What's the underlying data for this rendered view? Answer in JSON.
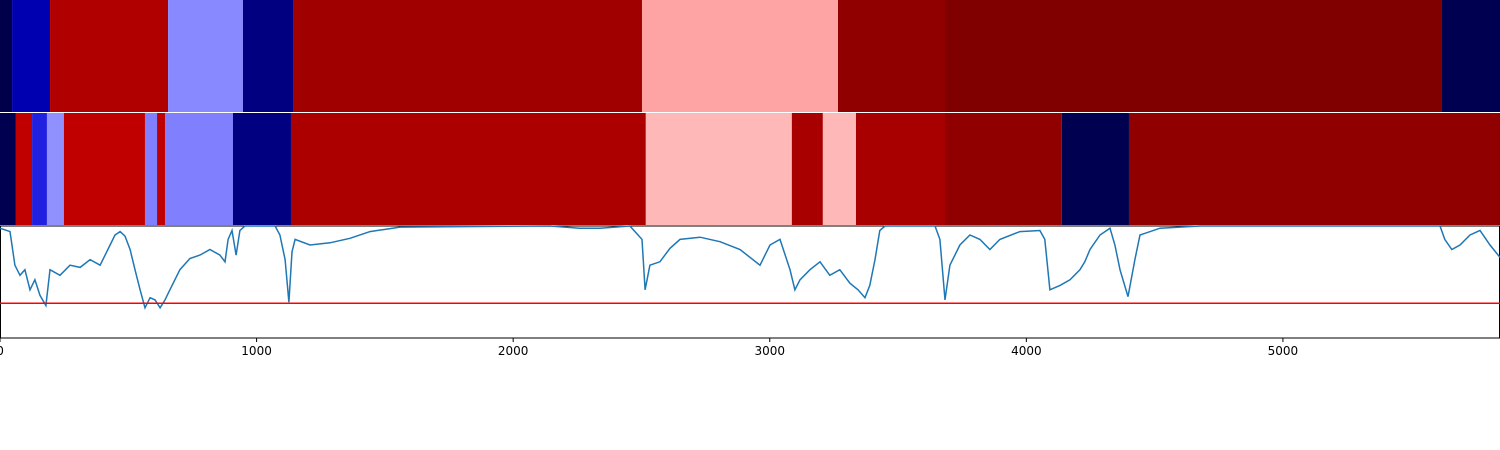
{
  "chart_data": {
    "type": "line",
    "xlim": [
      0,
      5846
    ],
    "ylim": [
      0,
      1
    ],
    "xticks": [
      0,
      1000,
      2000,
      3000,
      4000,
      5000
    ],
    "bands": [
      {
        "segments": [
          {
            "start": 0,
            "end": 47,
            "color": "#00004a"
          },
          {
            "start": 47,
            "end": 195,
            "color": "#0000b0"
          },
          {
            "start": 195,
            "end": 655,
            "color": "#b00000"
          },
          {
            "start": 655,
            "end": 947,
            "color": "#8888ff"
          },
          {
            "start": 947,
            "end": 1142,
            "color": "#000080"
          },
          {
            "start": 1142,
            "end": 2502,
            "color": "#a00000"
          },
          {
            "start": 2502,
            "end": 3266,
            "color": "#ffa4a4"
          },
          {
            "start": 3266,
            "end": 3683,
            "color": "#900000"
          },
          {
            "start": 3683,
            "end": 5620,
            "color": "#800000"
          },
          {
            "start": 5620,
            "end": 5846,
            "color": "#000050"
          }
        ]
      },
      {
        "segments": [
          {
            "start": 0,
            "end": 62,
            "color": "#000050"
          },
          {
            "start": 62,
            "end": 125,
            "color": "#c00000"
          },
          {
            "start": 125,
            "end": 183,
            "color": "#2020e0"
          },
          {
            "start": 183,
            "end": 249,
            "color": "#9090ff"
          },
          {
            "start": 249,
            "end": 565,
            "color": "#c00000"
          },
          {
            "start": 565,
            "end": 612,
            "color": "#8080ff"
          },
          {
            "start": 612,
            "end": 643,
            "color": "#c00000"
          },
          {
            "start": 643,
            "end": 908,
            "color": "#8080ff"
          },
          {
            "start": 908,
            "end": 1134,
            "color": "#000080"
          },
          {
            "start": 1134,
            "end": 2517,
            "color": "#ac0000"
          },
          {
            "start": 2517,
            "end": 3086,
            "color": "#ffb8b8"
          },
          {
            "start": 3086,
            "end": 3207,
            "color": "#a80000"
          },
          {
            "start": 3207,
            "end": 3336,
            "color": "#ffb8b8"
          },
          {
            "start": 3336,
            "end": 3683,
            "color": "#a80000"
          },
          {
            "start": 3683,
            "end": 4138,
            "color": "#900000"
          },
          {
            "start": 4138,
            "end": 4400,
            "color": "#000050"
          },
          {
            "start": 4400,
            "end": 5846,
            "color": "#900000"
          }
        ]
      }
    ],
    "x": [
      0,
      39,
      58,
      78,
      97,
      117,
      136,
      156,
      179,
      195,
      234,
      273,
      312,
      351,
      390,
      429,
      448,
      468,
      487,
      507,
      526,
      546,
      565,
      585,
      604,
      624,
      643,
      662,
      701,
      740,
      779,
      818,
      857,
      877,
      889,
      904,
      920,
      935,
      955,
      1072,
      1091,
      1111,
      1126,
      1138,
      1150,
      1208,
      1286,
      1364,
      1442,
      1559,
      2143,
      2260,
      2338,
      2455,
      2502,
      2514,
      2533,
      2572,
      2611,
      2650,
      2728,
      2806,
      2884,
      2962,
      3001,
      3040,
      3079,
      3098,
      3118,
      3157,
      3196,
      3234,
      3273,
      3312,
      3344,
      3371,
      3390,
      3410,
      3429,
      3449,
      3644,
      3663,
      3683,
      3702,
      3741,
      3780,
      3819,
      3858,
      3897,
      3975,
      4053,
      4072,
      4092,
      4131,
      4170,
      4209,
      4228,
      4248,
      4287,
      4326,
      4345,
      4365,
      4396,
      4423,
      4443,
      4521,
      4676,
      5612,
      5631,
      5658,
      5690,
      5729,
      5768,
      5807,
      5846
    ],
    "series": [
      {
        "color": "#1f77b4",
        "values": [
          0.98,
          0.95,
          0.65,
          0.56,
          0.61,
          0.43,
          0.52,
          0.38,
          0.29,
          0.61,
          0.56,
          0.65,
          0.63,
          0.7,
          0.65,
          0.83,
          0.92,
          0.95,
          0.91,
          0.79,
          0.61,
          0.43,
          0.27,
          0.36,
          0.34,
          0.27,
          0.34,
          0.43,
          0.61,
          0.71,
          0.74,
          0.79,
          0.74,
          0.68,
          0.88,
          0.96,
          0.74,
          0.96,
          1.0,
          1.0,
          0.92,
          0.7,
          0.32,
          0.77,
          0.88,
          0.83,
          0.85,
          0.89,
          0.95,
          0.99,
          1.0,
          0.98,
          0.98,
          1.0,
          0.88,
          0.43,
          0.65,
          0.68,
          0.8,
          0.88,
          0.9,
          0.86,
          0.79,
          0.65,
          0.83,
          0.88,
          0.61,
          0.43,
          0.52,
          0.61,
          0.68,
          0.56,
          0.61,
          0.49,
          0.43,
          0.36,
          0.47,
          0.7,
          0.96,
          1.0,
          1.0,
          0.88,
          0.34,
          0.65,
          0.83,
          0.92,
          0.88,
          0.79,
          0.88,
          0.95,
          0.96,
          0.88,
          0.43,
          0.47,
          0.52,
          0.61,
          0.68,
          0.79,
          0.92,
          0.98,
          0.83,
          0.61,
          0.37,
          0.7,
          0.92,
          0.98,
          1.0,
          1.0,
          0.88,
          0.79,
          0.83,
          0.92,
          0.96,
          0.83,
          0.72
        ]
      }
    ],
    "hline": {
      "value": 0.31,
      "color": "#ff0000"
    }
  }
}
